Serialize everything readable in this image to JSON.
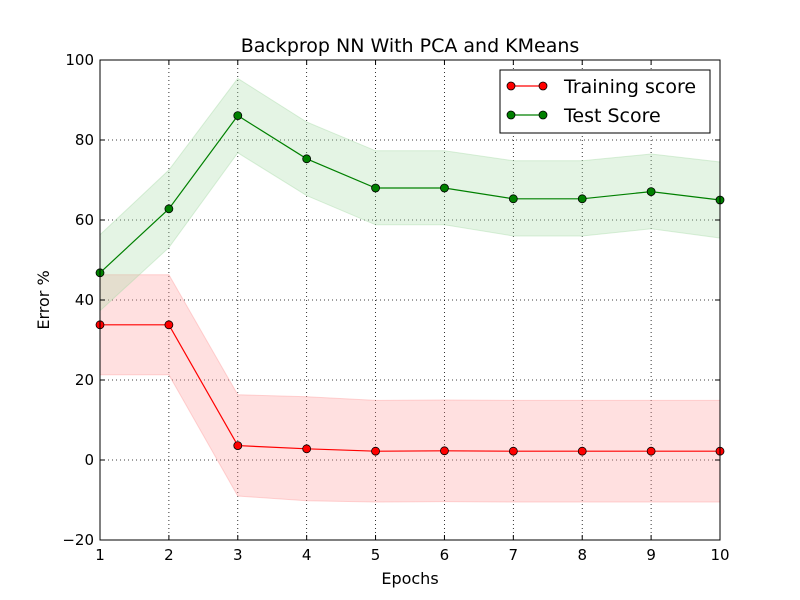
{
  "chart_data": {
    "type": "line",
    "title": "Backprop NN With PCA and KMeans",
    "xlabel": "Epochs",
    "ylabel": "Error %",
    "xlim": [
      1,
      10
    ],
    "ylim": [
      -20,
      100
    ],
    "xticks": [
      1,
      2,
      3,
      4,
      5,
      6,
      7,
      8,
      9,
      10
    ],
    "yticks": [
      -20,
      0,
      20,
      40,
      60,
      80,
      100
    ],
    "xtick_labels": [
      "1",
      "2",
      "3",
      "4",
      "5",
      "6",
      "7",
      "8",
      "9",
      "10"
    ],
    "ytick_labels": [
      "−20",
      "0",
      "20",
      "40",
      "60",
      "80",
      "100"
    ],
    "grid": true,
    "legend_position": "top-right",
    "x": [
      1,
      2,
      3,
      4,
      5,
      6,
      7,
      8,
      9,
      10
    ],
    "series": [
      {
        "name": "Training score",
        "color": "#ff0000",
        "band_color": "#ff9999",
        "values": [
          33.8,
          33.8,
          3.6,
          2.8,
          2.2,
          2.3,
          2.2,
          2.2,
          2.2,
          2.2
        ],
        "upper": [
          46.3,
          46.3,
          16.3,
          15.8,
          14.9,
          15.0,
          14.9,
          14.9,
          14.9,
          14.9
        ],
        "lower": [
          21.3,
          21.3,
          -9.0,
          -10.2,
          -10.5,
          -10.4,
          -10.5,
          -10.5,
          -10.5,
          -10.5
        ]
      },
      {
        "name": "Test Score",
        "color": "#008000",
        "band_color": "#a6d9a6",
        "values": [
          46.8,
          62.8,
          86.1,
          75.3,
          68.0,
          68.0,
          65.3,
          65.3,
          67.1,
          65.0
        ],
        "upper": [
          56.3,
          72.5,
          95.4,
          84.5,
          77.3,
          77.3,
          74.8,
          74.8,
          76.5,
          74.5
        ],
        "lower": [
          37.3,
          53.1,
          76.8,
          66.1,
          58.8,
          58.8,
          56.0,
          56.0,
          57.8,
          55.5
        ]
      }
    ]
  }
}
